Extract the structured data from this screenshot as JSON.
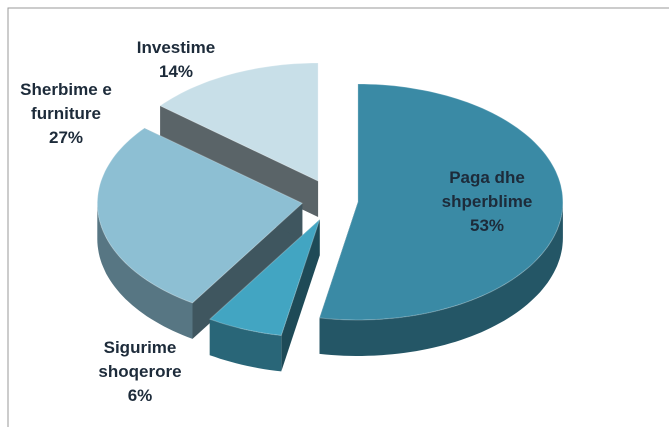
{
  "chart_data": {
    "type": "pie3d",
    "categories": [
      "Paga dhe shperblime",
      "Sigurime shoqerore",
      "Sherbime e furniture",
      "Investime"
    ],
    "values": [
      53,
      6,
      27,
      14
    ],
    "value_labels": [
      "53%",
      "6%",
      "27%",
      "14%"
    ],
    "colors": [
      "#3a8aa5",
      "#42a5c2",
      "#8dbfd3",
      "#c8dfe8"
    ]
  }
}
